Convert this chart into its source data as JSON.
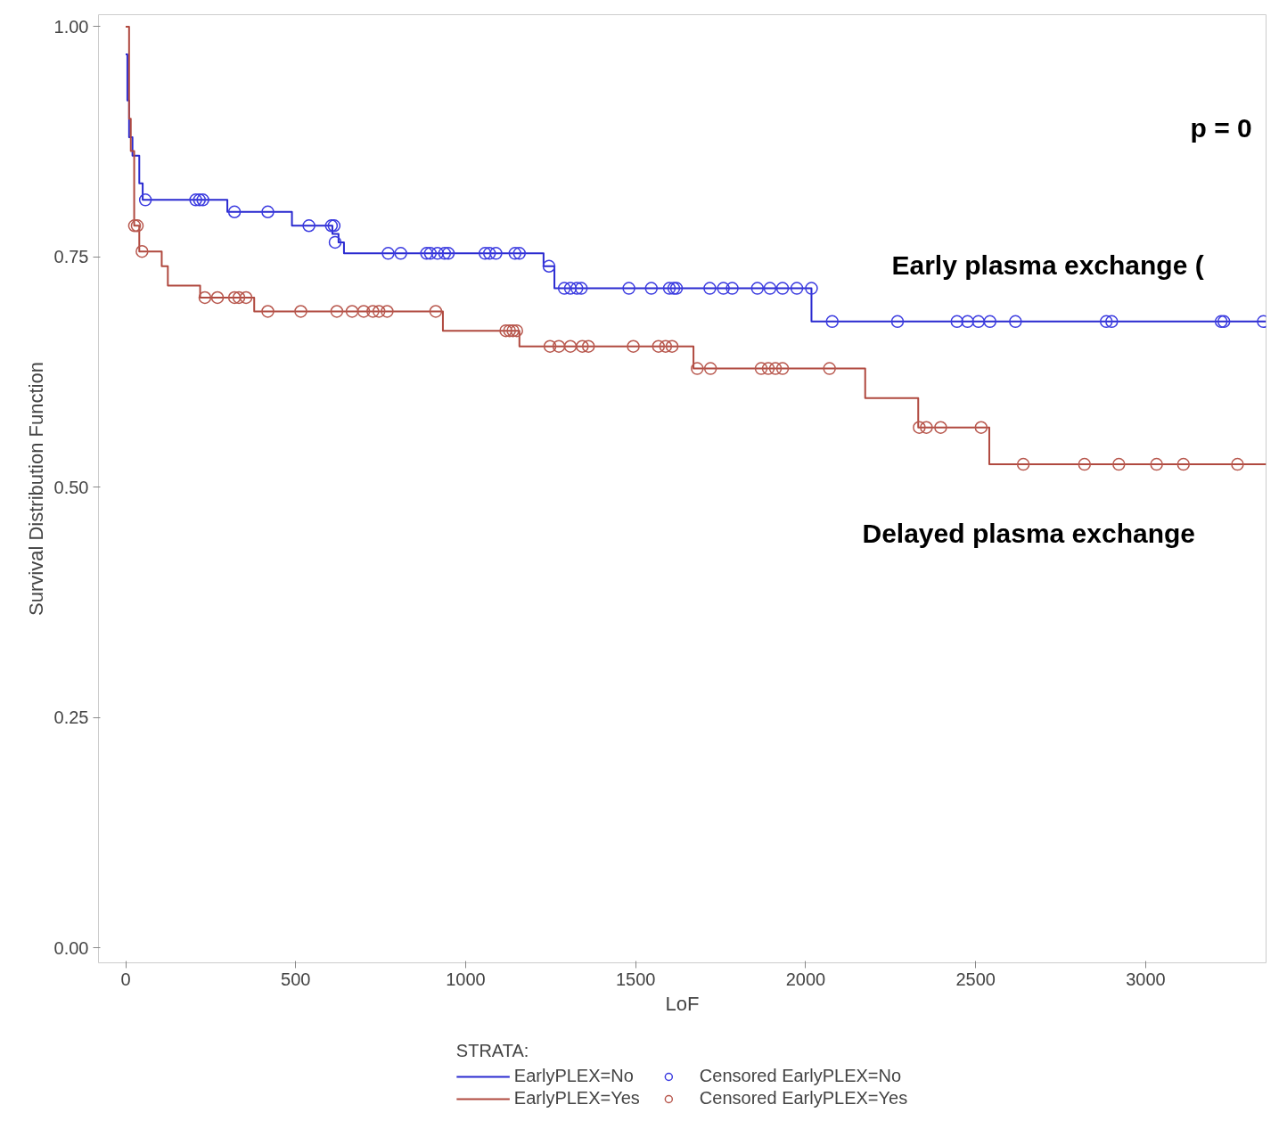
{
  "chart_data": {
    "type": "step",
    "xlabel": "LoF",
    "ylabel": "Survival Distribution Function",
    "legend_title": "STRATA:",
    "legend": "bottom",
    "xlim": [
      -80,
      3354
    ],
    "ylim": [
      -0.016,
      1.013
    ],
    "xticks": [
      0,
      500,
      1000,
      1500,
      2000,
      2500,
      3000
    ],
    "yticks": [
      {
        "value": 0,
        "label": "0.00"
      },
      {
        "value": 0.25,
        "label": "0.25"
      },
      {
        "value": 0.5,
        "label": "0.50"
      },
      {
        "value": 0.75,
        "label": "0.75"
      },
      {
        "value": 1,
        "label": "1.00"
      }
    ],
    "series": [
      {
        "name": "EarlyPLEX=No",
        "marker": "none",
        "color": "#2a2ad0",
        "x": [
          0,
          5,
          10,
          20,
          40,
          50,
          299,
          489,
          608,
          626,
          642,
          1229,
          1261,
          2017,
          3354
        ],
        "values": [
          0.97,
          0.92,
          0.88,
          0.86,
          0.83,
          0.812,
          0.799,
          0.784,
          0.775,
          0.766,
          0.754,
          0.74,
          0.716,
          0.68,
          0.68
        ]
      },
      {
        "name": "EarlyPLEX=Yes",
        "marker": "none",
        "color": "#b0493f",
        "x": [
          0,
          10,
          15,
          25,
          40,
          106,
          124,
          219,
          378,
          933,
          1158,
          1670,
          2175,
          2331,
          2540,
          3354
        ],
        "values": [
          1.0,
          0.9,
          0.865,
          0.784,
          0.756,
          0.74,
          0.719,
          0.706,
          0.691,
          0.67,
          0.653,
          0.629,
          0.597,
          0.565,
          0.525,
          0.525
        ]
      },
      {
        "name": "Censored EarlyPLEX=No",
        "type": "scatter",
        "marker": "circle",
        "color": "#3b3be0",
        "x": [
          58,
          206,
          217,
          227,
          320,
          418,
          539,
          605,
          613,
          616,
          772,
          809,
          885,
          896,
          917,
          938,
          949,
          1057,
          1070,
          1089,
          1145,
          1158,
          1245,
          1290,
          1308,
          1327,
          1340,
          1480,
          1546,
          1599,
          1612,
          1620,
          1718,
          1758,
          1784,
          1858,
          1895,
          1932,
          1974,
          2017,
          2078,
          2270,
          2445,
          2476,
          2508,
          2542,
          2617,
          2884,
          2900,
          3222,
          3230,
          3346
        ],
        "values": [
          0.812,
          0.812,
          0.812,
          0.812,
          0.799,
          0.799,
          0.784,
          0.784,
          0.784,
          0.766,
          0.754,
          0.754,
          0.754,
          0.754,
          0.754,
          0.754,
          0.754,
          0.754,
          0.754,
          0.754,
          0.754,
          0.754,
          0.74,
          0.716,
          0.716,
          0.716,
          0.716,
          0.716,
          0.716,
          0.716,
          0.716,
          0.716,
          0.716,
          0.716,
          0.716,
          0.716,
          0.716,
          0.716,
          0.716,
          0.716,
          0.68,
          0.68,
          0.68,
          0.68,
          0.68,
          0.68,
          0.68,
          0.68,
          0.68,
          0.68,
          0.68,
          0.68
        ]
      },
      {
        "name": "Censored EarlyPLEX=Yes",
        "type": "scatter",
        "marker": "circle",
        "color": "#b8584e",
        "x": [
          26,
          34,
          48,
          233,
          270,
          320,
          333,
          354,
          418,
          515,
          621,
          666,
          700,
          727,
          745,
          769,
          912,
          1118,
          1129,
          1139,
          1150,
          1248,
          1274,
          1308,
          1343,
          1361,
          1493,
          1567,
          1588,
          1607,
          1681,
          1720,
          1869,
          1890,
          1911,
          1932,
          2070,
          2334,
          2355,
          2397,
          2516,
          2640,
          2820,
          2921,
          3032,
          3111,
          3270
        ],
        "values": [
          0.784,
          0.784,
          0.756,
          0.706,
          0.706,
          0.706,
          0.706,
          0.706,
          0.691,
          0.691,
          0.691,
          0.691,
          0.691,
          0.691,
          0.691,
          0.691,
          0.691,
          0.67,
          0.67,
          0.67,
          0.67,
          0.653,
          0.653,
          0.653,
          0.653,
          0.653,
          0.653,
          0.653,
          0.653,
          0.653,
          0.629,
          0.629,
          0.629,
          0.629,
          0.629,
          0.629,
          0.629,
          0.565,
          0.565,
          0.565,
          0.565,
          0.525,
          0.525,
          0.525,
          0.525,
          0.525,
          0.525
        ]
      }
    ],
    "annotations": [
      "p = 0",
      "Early plasma exchange (",
      "Delayed plasma exchange"
    ]
  }
}
